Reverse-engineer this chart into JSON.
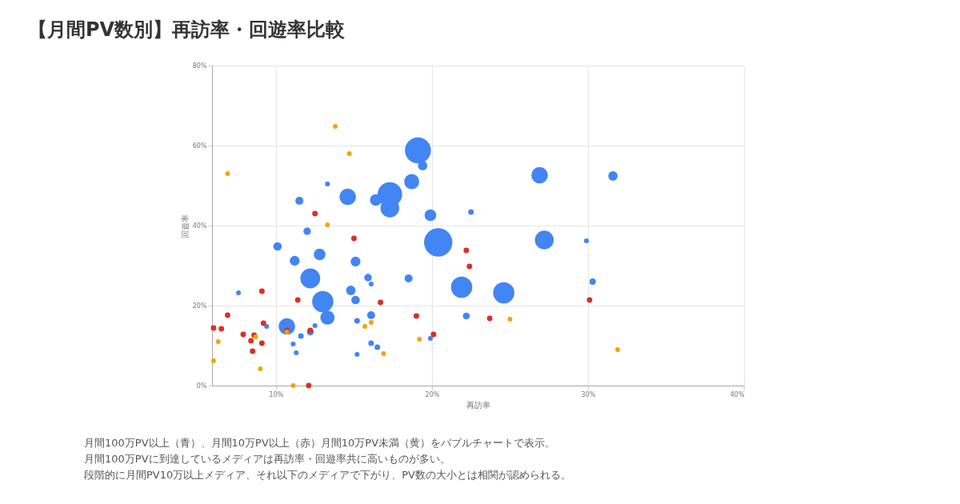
{
  "chart_data": {
    "type": "bubble",
    "title": "【月間PV数別】再訪率・回遊率比較",
    "xlabel": "再訪率",
    "ylabel": "回遊率",
    "xlim": [
      5.9,
      40
    ],
    "ylim": [
      0,
      80
    ],
    "xticks": [
      {
        "value": 10,
        "label": "10%"
      },
      {
        "value": 20,
        "label": "20%"
      },
      {
        "value": 30,
        "label": "30%"
      },
      {
        "value": 40,
        "label": "40%"
      }
    ],
    "yticks": [
      {
        "value": 0,
        "label": "0%"
      },
      {
        "value": 20,
        "label": "20%"
      },
      {
        "value": 40,
        "label": "40%"
      },
      {
        "value": 60,
        "label": "60%"
      },
      {
        "value": 80,
        "label": "80%"
      }
    ],
    "grid": true,
    "legend": false,
    "marker": "circle",
    "series": [
      {
        "color": "#4285f4",
        "x": [
          19.1,
          19.4,
          18.7,
          17.3,
          17.3,
          16.4,
          14.6,
          11.5,
          13.3,
          19.9,
          12.0,
          10.1,
          11.2,
          12.8,
          15.1,
          20.4,
          12.2,
          15.9,
          16.1,
          18.5,
          7.6,
          14.8,
          15.1,
          13.0,
          13.3,
          21.9,
          16.1,
          22.2,
          10.7,
          9.4,
          12.5,
          12.2,
          11.6,
          15.2,
          11.1,
          11.3,
          16.1,
          16.5,
          15.2,
          19.9,
          22.5,
          26.9,
          31.6,
          27.2,
          29.9,
          30.3,
          24.6
        ],
        "values": [
          58.8,
          55,
          51,
          47.8,
          44.4,
          46.4,
          47.2,
          46.2,
          50.4,
          42.6,
          38.6,
          34.8,
          31.2,
          32.8,
          31,
          35.8,
          26.8,
          27,
          25.4,
          26.8,
          23.2,
          23.8,
          21.4,
          21,
          17,
          24.6,
          17.6,
          17.4,
          14.8,
          14.8,
          15,
          13.4,
          12.4,
          16.2,
          10.4,
          8.2,
          10.6,
          9.6,
          7.8,
          11.8,
          43.4,
          52.6,
          52.4,
          36.4,
          36.2,
          26,
          23.2
        ],
        "sizes": [
          0.84,
          0.11,
          0.28,
          0.75,
          0.44,
          0.17,
          0.34,
          0.08,
          0.03,
          0.17,
          0.07,
          0.09,
          0.12,
          0.17,
          0.12,
          1,
          0.49,
          0.07,
          0.03,
          0.08,
          0.03,
          0.11,
          0.09,
          0.56,
          0.25,
          0.56,
          0.08,
          0.06,
          0.34,
          0.03,
          0.03,
          0.06,
          0.04,
          0.04,
          0.03,
          0.03,
          0.04,
          0.04,
          0.03,
          0.03,
          0.04,
          0.34,
          0.11,
          0.44,
          0.03,
          0.05,
          0.56
        ]
      },
      {
        "color": "#d93025",
        "x": [
          12.5,
          15.0,
          22.2,
          22.4,
          9.1,
          11.4,
          16.7,
          19.0,
          6.9,
          6.0,
          6.5,
          9.2,
          7.9,
          8.6,
          8.4,
          9.1,
          8.5,
          10.7,
          12.2,
          20.1,
          12.1,
          23.7,
          30.1
        ],
        "values": [
          43,
          36.8,
          33.8,
          29.8,
          23.6,
          21.4,
          20.8,
          17.4,
          17.6,
          14.4,
          14.2,
          15.6,
          12.8,
          12.6,
          11.2,
          10.6,
          8.6,
          13.8,
          13.8,
          12.8,
          0,
          16.8,
          21.4
        ]
      },
      {
        "color": "#f5a300",
        "x": [
          13.8,
          14.7,
          6.9,
          13.3,
          10.7,
          8.7,
          6.3,
          6.0,
          9.0,
          11.1,
          15.7,
          16.1,
          16.9,
          19.2,
          25.0,
          31.9
        ],
        "values": [
          64.8,
          58,
          53,
          40.2,
          13.4,
          12.2,
          11,
          6.2,
          4.2,
          0,
          14.8,
          15.8,
          8,
          11.6,
          16.6,
          9
        ]
      }
    ],
    "annotations": [
      "月間100万PV以上（青）、月間10万PV以上（赤）月間10万PV未満（黄）をバブルチャートで表示。",
      "月間100万PVに到達しているメディアは再訪率・回遊率共に高いものが多い。",
      "段階的に月間PV10万以上メディア、それ以下のメディアで下がり、PV数の大小とは相関が認められる。"
    ]
  }
}
